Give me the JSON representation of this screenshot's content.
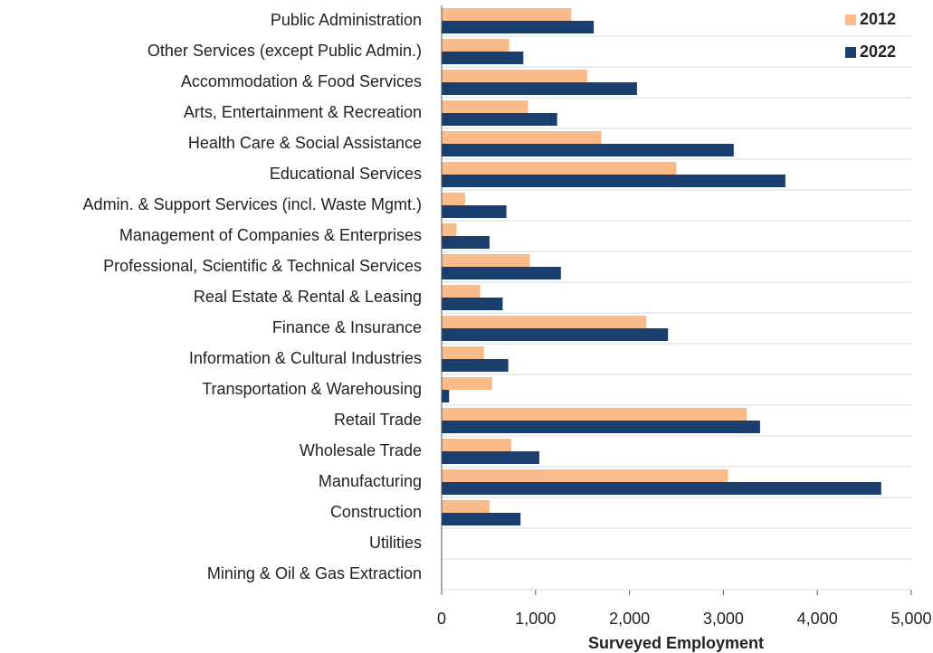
{
  "chart_data": {
    "type": "barh",
    "x_label": "Surveyed Employment",
    "categories": [
      "Public Administration",
      "Other Services (except Public Admin.)",
      "Accommodation & Food Services",
      "Arts, Entertainment & Recreation",
      "Health Care & Social Assistance",
      "Educational Services",
      "Admin. & Support Services (incl. Waste Mgmt.)",
      "Management of Companies & Enterprises",
      "Professional, Scientific & Technical Services",
      "Real Estate & Rental & Leasing",
      "Finance & Insurance",
      "Information & Cultural Industries",
      "Transportation & Warehousing",
      "Retail Trade",
      "Wholesale Trade",
      "Manufacturing",
      "Construction",
      "Utilities",
      "Mining & Oil & Gas Extraction"
    ],
    "series": [
      {
        "name": "2012",
        "color": "#f9bb8a",
        "values": [
          1380,
          720,
          1550,
          920,
          1700,
          2500,
          250,
          160,
          940,
          410,
          2180,
          450,
          540,
          3250,
          740,
          3050,
          510,
          0,
          0
        ]
      },
      {
        "name": "2022",
        "color": "#1a3f6f",
        "values": [
          1620,
          870,
          2080,
          1230,
          3110,
          3660,
          690,
          510,
          1270,
          650,
          2410,
          710,
          80,
          3390,
          1040,
          4680,
          840,
          0,
          0
        ]
      }
    ],
    "xlim": [
      0,
      5000
    ],
    "xticks": [
      0,
      {
        "value": 1000,
        "label": "1,000"
      },
      {
        "value": 2000,
        "label": "2,000"
      },
      {
        "value": 3000,
        "label": "3,000"
      },
      {
        "value": 4000,
        "label": "4,000"
      },
      {
        "value": 5000,
        "label": "5,000"
      }
    ],
    "grid": true,
    "legend": "top-right"
  }
}
